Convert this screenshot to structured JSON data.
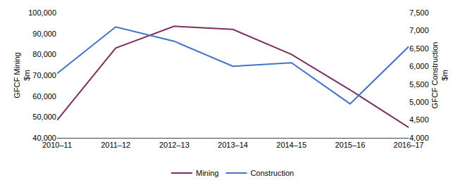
{
  "chart_data": {
    "type": "line",
    "categories": [
      "2010–11",
      "2011–12",
      "2012–13",
      "2013–14",
      "2014–15",
      "2015–16",
      "2016–17"
    ],
    "series": [
      {
        "name": "Mining",
        "color": "#7B3060",
        "values": [
          48500,
          83000,
          93500,
          92000,
          80000,
          63000,
          45000
        ]
      },
      {
        "name": "Construction",
        "color": "#4472C4",
        "axis": "y2",
        "values": [
          5800,
          7100,
          6700,
          6000,
          6100,
          4950,
          6550
        ]
      }
    ],
    "ylabel": "GFCF Mining\n$m",
    "y2label": "GFCF Construction\n$m",
    "ylim": [
      40000,
      100000
    ],
    "yticks": [
      {
        "value": 40000,
        "label": "40,000"
      },
      {
        "value": 50000,
        "label": "50,000"
      },
      {
        "value": 60000,
        "label": "60,000"
      },
      {
        "value": 70000,
        "label": "70,000"
      },
      {
        "value": 80000,
        "label": "80,000"
      },
      {
        "value": 90000,
        "label": "90,000"
      },
      {
        "value": 100000,
        "label": "100,000"
      }
    ],
    "y2lim": [
      4000,
      7500
    ],
    "y2ticks": [
      {
        "value": 4000,
        "label": "4,000"
      },
      {
        "value": 4500,
        "label": "4,500"
      },
      {
        "value": 5000,
        "label": "5,000"
      },
      {
        "value": 5500,
        "label": "5,500"
      },
      {
        "value": 6000,
        "label": "6,000"
      },
      {
        "value": 6500,
        "label": "6,500"
      },
      {
        "value": 7000,
        "label": "7,000"
      },
      {
        "value": 7500,
        "label": "7,500"
      }
    ],
    "grid": false,
    "legend": "bottom"
  }
}
